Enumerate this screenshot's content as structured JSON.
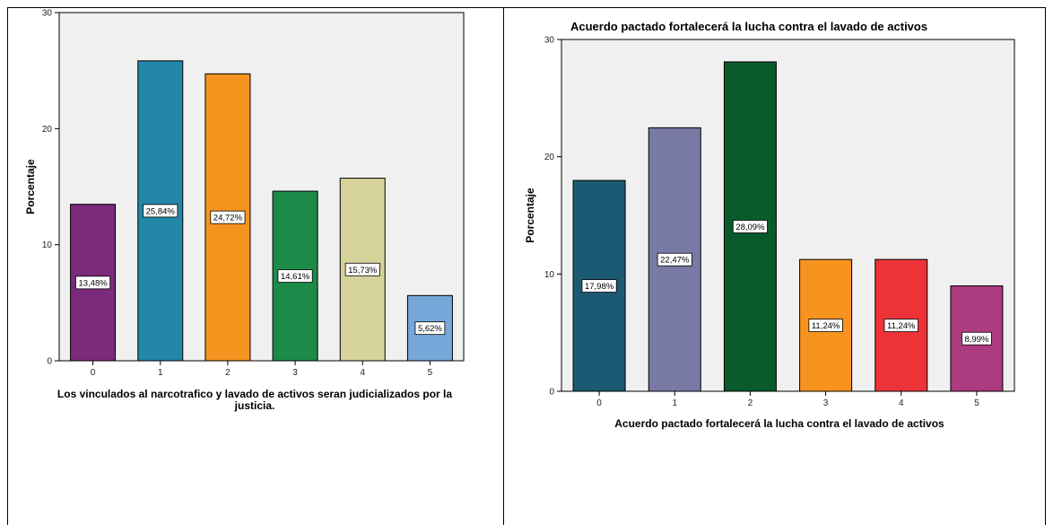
{
  "chart_data": [
    {
      "type": "bar",
      "title": "",
      "xlabel_lines": [
        "Los vinculados al narcotrafico y lavado de activos seran judicializados por la",
        "justicia."
      ],
      "ylabel": "Porcentaje",
      "categories": [
        "0",
        "1",
        "2",
        "3",
        "4",
        "5"
      ],
      "values": [
        13.48,
        25.84,
        24.72,
        14.61,
        15.73,
        5.62
      ],
      "value_labels": [
        "13,48%",
        "25,84%",
        "24,72%",
        "14,61%",
        "15,73%",
        "5,62%"
      ],
      "colors": [
        "#7b2b7b",
        "#2387a8",
        "#f6931f",
        "#1d8a4a",
        "#d6d39b",
        "#77a7d8"
      ],
      "ylim": [
        0,
        30
      ],
      "yticks": [
        0,
        10,
        20,
        30
      ],
      "grid": false,
      "plot_background": "#f0f0f0"
    },
    {
      "type": "bar",
      "title": "Acuerdo pactado fortalecerá la lucha contra el lavado de activos",
      "xlabel_lines": [
        "Acuerdo pactado fortalecerá la lucha contra el lavado de activos"
      ],
      "ylabel": "Porcentaje",
      "categories": [
        "0",
        "1",
        "2",
        "3",
        "4",
        "5"
      ],
      "values": [
        17.98,
        22.47,
        28.09,
        11.24,
        11.24,
        8.99
      ],
      "value_labels": [
        "17,98%",
        "22,47%",
        "28,09%",
        "11,24%",
        "11,24%",
        "8,99%"
      ],
      "colors": [
        "#1c5a73",
        "#7979a6",
        "#0b5a2c",
        "#f7931e",
        "#ee3338",
        "#ad3b80"
      ],
      "ylim": [
        0,
        30
      ],
      "yticks": [
        0,
        10,
        20,
        30
      ],
      "grid": false,
      "plot_background": "#f0f0f0"
    }
  ]
}
